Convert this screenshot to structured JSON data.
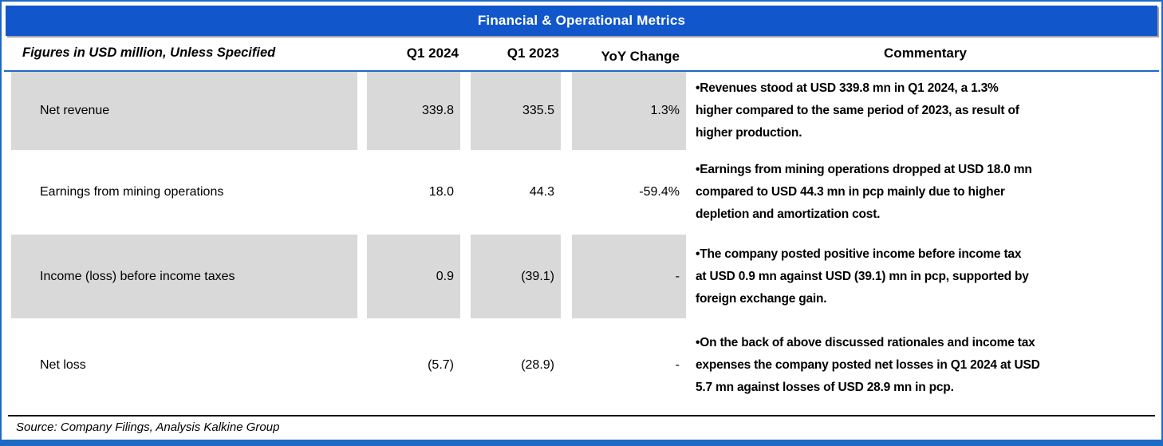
{
  "title": "Financial & Operational Metrics",
  "columns": {
    "label_header": "Figures in USD million, Unless Specified",
    "q1_2024": "Q1 2024",
    "q1_2023": "Q1 2023",
    "yoy": "YoY Change",
    "commentary": "Commentary"
  },
  "rows": [
    {
      "label": "Net revenue",
      "q1_2024": "339.8",
      "q1_2023": "335.5",
      "yoy": "1.3%",
      "commentary_lines": [
        "•Revenues stood at USD 339.8 mn in Q1 2024, a 1.3%",
        "higher compared to the same period of 2023, as result of",
        "higher production."
      ]
    },
    {
      "label": "Earnings from mining operations",
      "q1_2024": "18.0",
      "q1_2023": "44.3",
      "yoy": "-59.4%",
      "commentary_lines": [
        "•Earnings from mining operations dropped at USD 18.0 mn",
        "compared to USD 44.3 mn in pcp mainly due to higher",
        "depletion and amortization cost."
      ]
    },
    {
      "label": "Income (loss) before income taxes",
      "q1_2024": "0.9",
      "q1_2023": "(39.1)",
      "yoy": "-",
      "commentary_lines": [
        "•The company posted positive income before income tax",
        "at USD 0.9 mn against USD (39.1) mn in pcp, supported by",
        "foreign exchange gain."
      ]
    },
    {
      "label": "Net loss",
      "q1_2024": "(5.7)",
      "q1_2023": "(28.9)",
      "yoy": "-",
      "commentary_lines": [
        "•On the back of above discussed rationales and income tax",
        "expenses the company posted net losses in Q1 2024 at USD",
        "5.7 mn against losses of USD 28.9 mn in pcp."
      ]
    }
  ],
  "source": "Source: Company Filings, Analysis Kalkine Group",
  "colors": {
    "header_blue": "#1157CB",
    "border_blue": "#1E6AC4",
    "row_gray": "#D9D9D9"
  }
}
